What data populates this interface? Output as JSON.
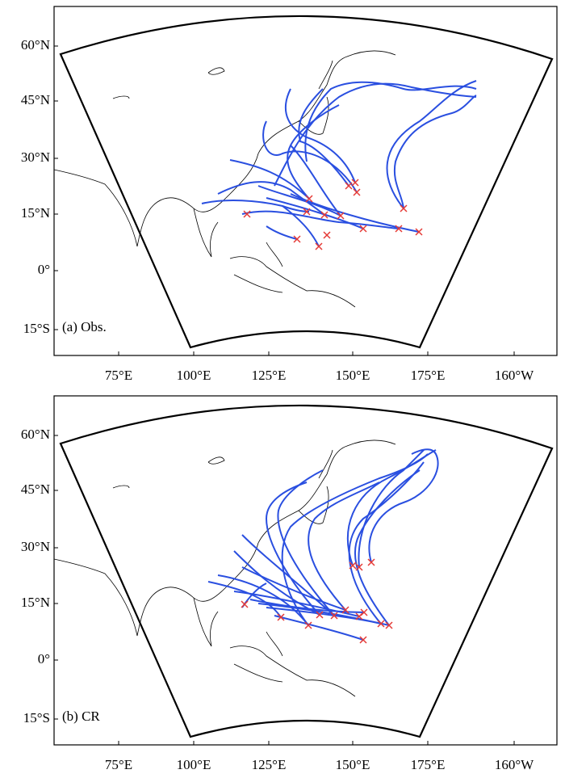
{
  "axes": {
    "y_labels": [
      "60°N",
      "45°N",
      "30°N",
      "15°N",
      "0°",
      "15°S"
    ],
    "x_labels": [
      "75°E",
      "100°E",
      "125°E",
      "150°E",
      "175°E",
      "160°W"
    ]
  },
  "panels": [
    {
      "label": "(a) Obs."
    },
    {
      "label": "(b) CR"
    }
  ]
}
